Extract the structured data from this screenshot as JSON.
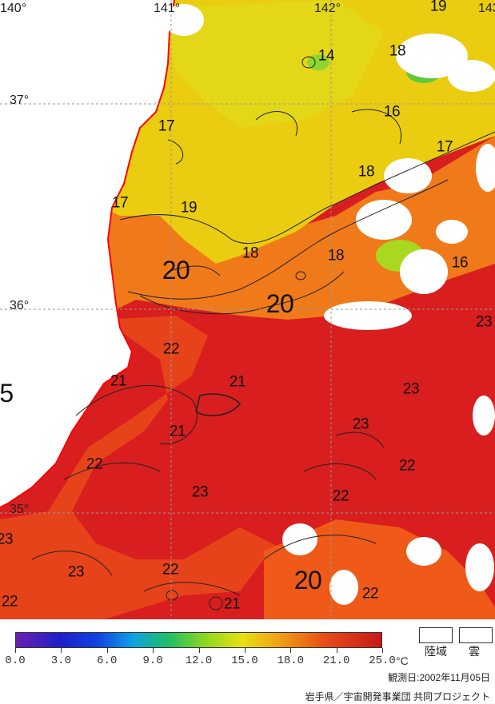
{
  "map": {
    "longitude_labels": [
      "140°",
      "141°",
      "142°",
      "143°"
    ],
    "latitude_labels": [
      "37°",
      "36°",
      "35°"
    ],
    "isotherm_labels": [
      {
        "text": "14"
      },
      {
        "text": "18"
      },
      {
        "text": "19"
      },
      {
        "text": "16"
      },
      {
        "text": "17"
      },
      {
        "text": "17"
      },
      {
        "text": "18"
      },
      {
        "text": "17"
      },
      {
        "text": "19"
      },
      {
        "text": "20"
      },
      {
        "text": "18"
      },
      {
        "text": "18"
      },
      {
        "text": "16"
      },
      {
        "text": "20"
      },
      {
        "text": "23"
      },
      {
        "text": "22"
      },
      {
        "text": "21"
      },
      {
        "text": "21"
      },
      {
        "text": "23"
      },
      {
        "text": "23"
      },
      {
        "text": "21"
      },
      {
        "text": "22"
      },
      {
        "text": "22"
      },
      {
        "text": "23"
      },
      {
        "text": "22"
      },
      {
        "text": "23"
      },
      {
        "text": "23"
      },
      {
        "text": "22"
      },
      {
        "text": "20"
      },
      {
        "text": "22"
      },
      {
        "text": "22"
      },
      {
        "text": "21"
      },
      {
        "text": "5"
      }
    ],
    "colors": {
      "land": "#ffffff",
      "coastline": "#ff0000",
      "cloud": "#ffffff",
      "warm": "#d81e1e",
      "mid": "#f06a1a",
      "cool": "#f2c00a",
      "cold": "#7ed321"
    }
  },
  "legend": {
    "scale_labels": [
      "0.0",
      "3.0",
      "6.0",
      "9.0",
      "12.0",
      "15.0",
      "18.0",
      "21.0",
      "25.0"
    ],
    "unit": "°C",
    "land_label": "陸域",
    "cloud_label": "雲",
    "observation_date": "観測日:2002年11月05日",
    "credit": "岩手県／宇宙開発事業団 共同プロジェクト"
  }
}
